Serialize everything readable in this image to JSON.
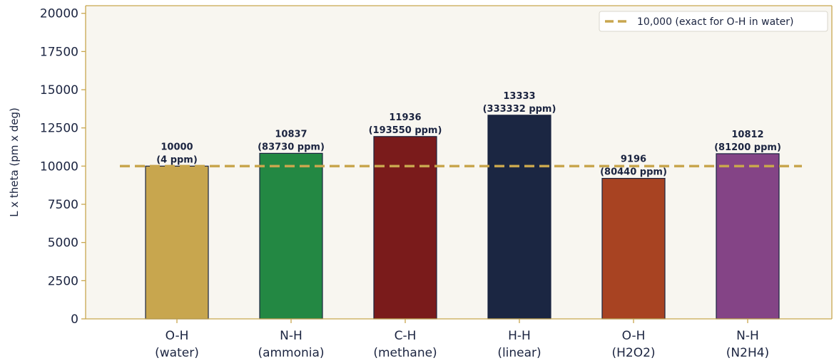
{
  "chart_data": {
    "type": "bar",
    "categories": [
      {
        "line1": "O-H",
        "line2": "(water)"
      },
      {
        "line1": "N-H",
        "line2": "(ammonia)"
      },
      {
        "line1": "C-H",
        "line2": "(methane)"
      },
      {
        "line1": "H-H",
        "line2": "(linear)"
      },
      {
        "line1": "O-H",
        "line2": "(H2O2)"
      },
      {
        "line1": "N-H",
        "line2": "(N2H4)"
      }
    ],
    "values": [
      10000,
      10837,
      11936,
      13333,
      9196,
      10812
    ],
    "data_labels": [
      {
        "value": "10000",
        "ppm": "(4 ppm)"
      },
      {
        "value": "10837",
        "ppm": "(83730 ppm)"
      },
      {
        "value": "11936",
        "ppm": "(193550 ppm)"
      },
      {
        "value": "13333",
        "ppm": "(333332 ppm)"
      },
      {
        "value": "9196",
        "ppm": "(80440 ppm)"
      },
      {
        "value": "10812",
        "ppm": "(81200 ppm)"
      }
    ],
    "colors": [
      "#c8a64e",
      "#238843",
      "#7a1b1b",
      "#1b2642",
      "#a84322",
      "#844486"
    ],
    "reference_line": {
      "value": 10000,
      "label": "10,000 (exact for O-H in water)",
      "color": "#c8a64e"
    },
    "ylabel": "L x theta (pm x deg)",
    "yticks": [
      "0",
      "2500",
      "5000",
      "7500",
      "10000",
      "12500",
      "15000",
      "17500",
      "20000"
    ],
    "ylim": [
      0,
      20500
    ],
    "grid": false,
    "legend_position": "top-right",
    "background_color": "#f8f6f0",
    "axis_color": "#c8a64e"
  }
}
